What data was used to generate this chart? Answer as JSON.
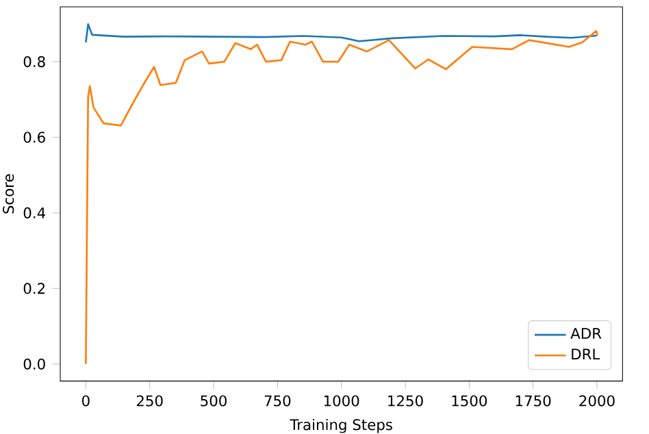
{
  "chart_data": {
    "type": "line",
    "xlabel": "Training Steps",
    "ylabel": "Score",
    "xlim": [
      -100,
      2100
    ],
    "ylim": [
      -0.045,
      0.945
    ],
    "xticks": [
      0,
      250,
      500,
      750,
      1000,
      1250,
      1500,
      1750,
      2000
    ],
    "yticks": [
      {
        "value": 0,
        "label": "0.0"
      },
      {
        "value": 0.2,
        "label": "0.2"
      },
      {
        "value": 0.4,
        "label": "0.4"
      },
      {
        "value": 0.6,
        "label": "0.6"
      },
      {
        "value": 0.8,
        "label": "0.8"
      }
    ],
    "legend": "bottom right",
    "grid": false,
    "series": [
      {
        "name": "ADR",
        "color": "#1f77b4",
        "x": [
          0,
          9,
          25,
          150,
          300,
          500,
          700,
          850,
          1000,
          1069,
          1200,
          1400,
          1600,
          1700,
          1800,
          1900,
          2000
        ],
        "values": [
          0.851,
          0.899,
          0.871,
          0.866,
          0.867,
          0.866,
          0.865,
          0.868,
          0.864,
          0.854,
          0.862,
          0.868,
          0.867,
          0.87,
          0.866,
          0.863,
          0.869
        ]
      },
      {
        "name": "DRL",
        "color": "#ff7f0e",
        "x": [
          0,
          9,
          16,
          30,
          69,
          137,
          189,
          224,
          267,
          292,
          352,
          387,
          455,
          482,
          542,
          585,
          645,
          670,
          705,
          765,
          799,
          859,
          885,
          928,
          988,
          1031,
          1100,
          1186,
          1289,
          1340,
          1409,
          1512,
          1667,
          1735,
          1787,
          1890,
          1942,
          1997,
          2002
        ],
        "values": [
          0.0,
          0.708,
          0.735,
          0.679,
          0.637,
          0.631,
          0.696,
          0.738,
          0.786,
          0.738,
          0.744,
          0.804,
          0.827,
          0.795,
          0.8,
          0.849,
          0.833,
          0.845,
          0.8,
          0.804,
          0.853,
          0.845,
          0.853,
          0.8,
          0.8,
          0.845,
          0.827,
          0.857,
          0.782,
          0.806,
          0.78,
          0.839,
          0.833,
          0.857,
          0.851,
          0.839,
          0.851,
          0.881,
          0.869
        ]
      }
    ]
  }
}
